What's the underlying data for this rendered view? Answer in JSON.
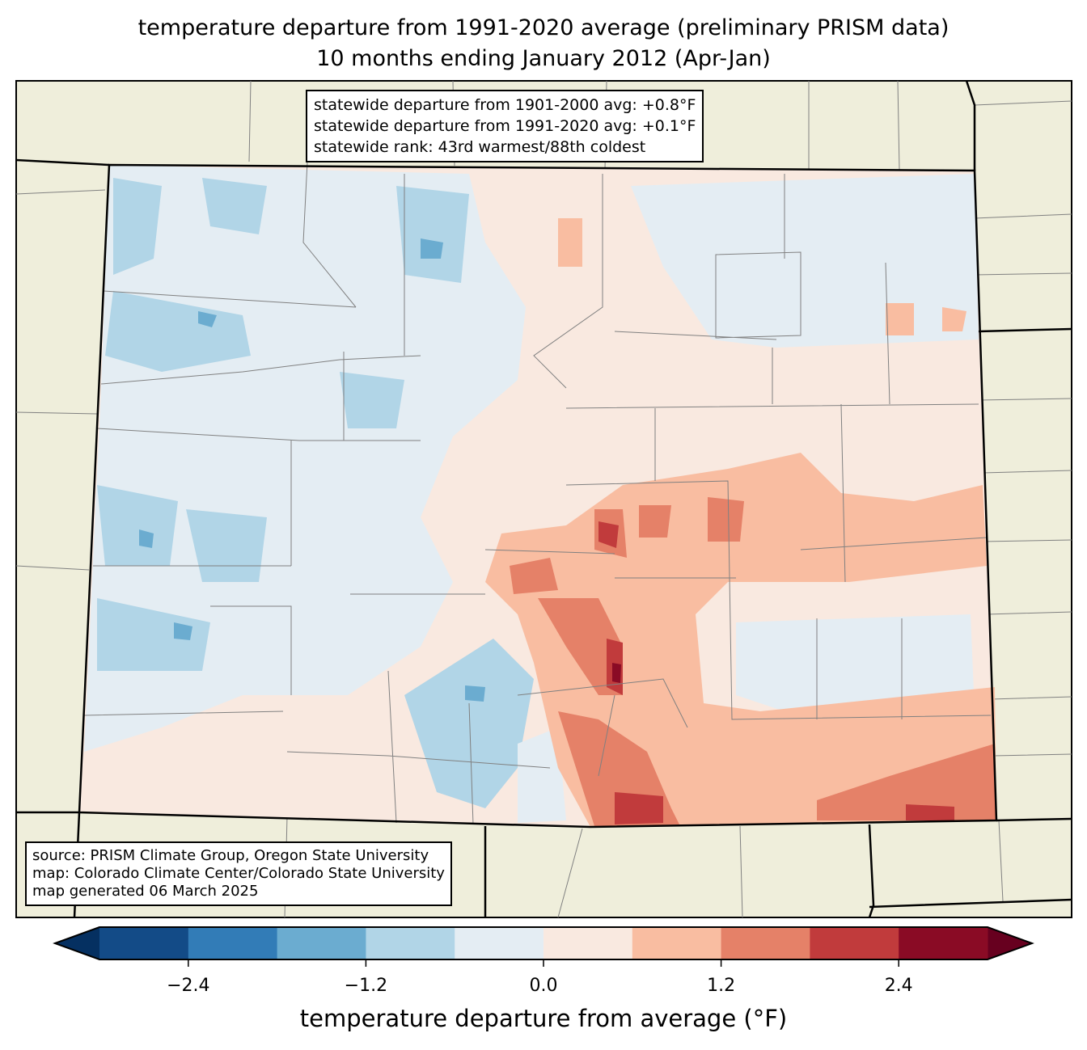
{
  "title": {
    "line1": "temperature departure from 1991-2020 average (preliminary PRISM data)",
    "line2": "10 months ending January 2012 (Apr-Jan)"
  },
  "stats_box": [
    "statewide departure from 1901-2000 avg: +0.8°F",
    "statewide departure from 1991-2020 avg: +0.1°F",
    "statewide rank: 43rd warmest/88th coldest"
  ],
  "source_box": [
    "source: PRISM Climate Group, Oregon State University",
    "map: Colorado Climate Center/Colorado State University",
    "map generated 06 March 2025"
  ],
  "colorbar": {
    "label": "temperature departure from average (°F)",
    "range": [
      -3.0,
      3.0
    ],
    "bounds": [
      -3.0,
      -2.4,
      -1.8,
      -1.2,
      -0.6,
      0.0,
      0.6,
      1.2,
      1.8,
      2.4,
      3.0
    ],
    "colors": [
      "#134b87",
      "#327cb7",
      "#6bacd0",
      "#b1d5e7",
      "#e4edf3",
      "#f9e9e0",
      "#f9bda1",
      "#e58168",
      "#c13b3c",
      "#8a0b25"
    ],
    "extend_low_color": "#053061",
    "extend_high_color": "#67001f",
    "ticks": [
      "−2.4",
      "−1.2",
      "0.0",
      "1.2",
      "2.4"
    ],
    "tick_values": [
      -2.4,
      -1.2,
      0.0,
      1.2,
      2.4
    ]
  },
  "colors": {
    "land": "#efeedb",
    "state_border": "#000000",
    "county_border": "#808080"
  }
}
